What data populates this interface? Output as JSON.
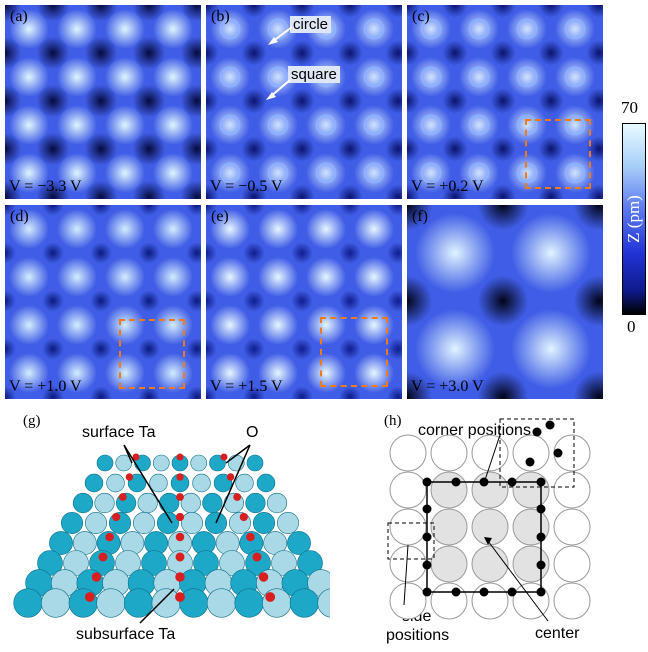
{
  "panels": [
    {
      "label": "(a)",
      "voltage": "V = −3.3 V"
    },
    {
      "label": "(b)",
      "voltage": "V = −0.5 V"
    },
    {
      "label": "(c)",
      "voltage": "V = +0.2 V"
    },
    {
      "label": "(d)",
      "voltage": "V = +1.0 V"
    },
    {
      "label": "(e)",
      "voltage": "V = +1.5 V"
    },
    {
      "label": "(f)",
      "voltage": "V = +3.0 V"
    }
  ],
  "annotations": {
    "circle": "circle",
    "square": "square"
  },
  "colorbar": {
    "max": "70",
    "min": "0",
    "label": "Z (pm)",
    "colors": [
      "#000000",
      "#1f2fd0",
      "#6f8df0",
      "#c9ecff",
      "#ffffff"
    ]
  },
  "panel_g": {
    "label": "(g)",
    "surface_ta": "surface Ta",
    "o": "O",
    "subsurface_ta": "subsurface Ta",
    "colors": {
      "ta_surface": "#1ea8c8",
      "ta_subsurface": "#a9d8e6",
      "oxygen": "#d81e1e"
    }
  },
  "panel_h": {
    "label": "(h)",
    "corner_positions": "corner positions",
    "side_positions_line1": "side",
    "side_positions_line2": "positions",
    "center": "center"
  }
}
